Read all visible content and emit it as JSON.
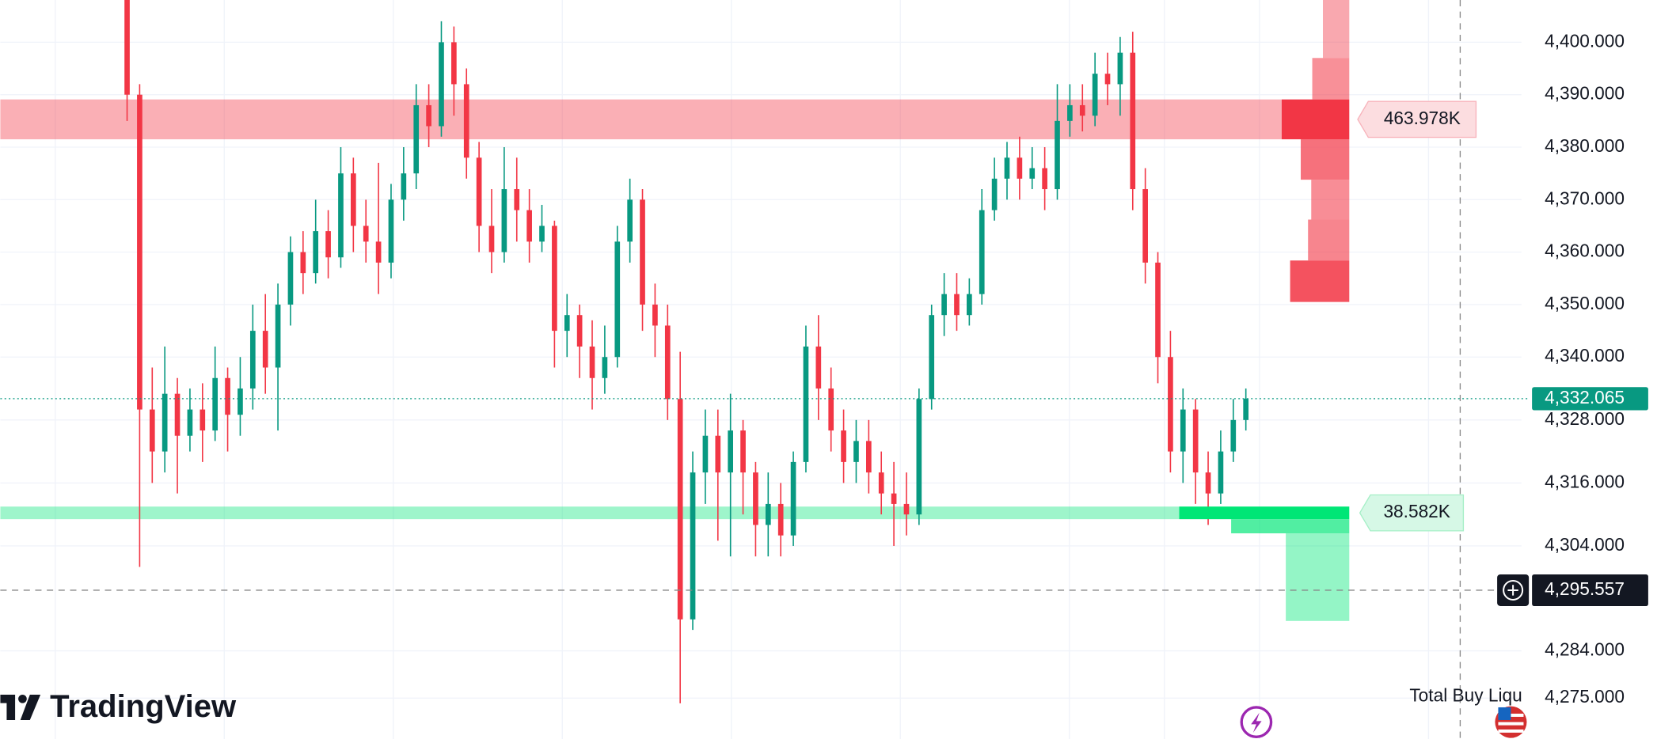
{
  "chart_data": {
    "type": "candlestick",
    "open": [
      4410,
      4390,
      4330,
      4322,
      4333,
      4325,
      4330,
      4326,
      4336,
      4329,
      4334,
      4345,
      4338,
      4350,
      4360,
      4356,
      4364,
      4359,
      4375,
      4365,
      4362,
      4358,
      4370,
      4375,
      4388,
      4384,
      4400,
      4392,
      4378,
      4365,
      4360,
      4372,
      4368,
      4362,
      4365,
      4345,
      4348,
      4342,
      4336,
      4340,
      4362,
      4370,
      4350,
      4346,
      4332,
      4290,
      4318,
      4325,
      4318,
      4326,
      4318,
      4308,
      4312,
      4306,
      4320,
      4342,
      4334,
      4326,
      4320,
      4324,
      4318,
      4314,
      4312,
      4310,
      4332,
      4348,
      4352,
      4348,
      4352,
      4368,
      4374,
      4378,
      4374,
      4376,
      4372,
      4385,
      4388,
      4386,
      4394,
      4392,
      4398,
      4372,
      4358,
      4340,
      4322,
      4330,
      4318,
      4314,
      4322,
      4328
    ],
    "high": [
      4412,
      4392,
      4338,
      4342,
      4336,
      4334,
      4335,
      4342,
      4338,
      4340,
      4350,
      4352,
      4354,
      4363,
      4364,
      4370,
      4368,
      4380,
      4378,
      4370,
      4377,
      4373,
      4380,
      4392,
      4392,
      4404,
      4403,
      4395,
      4381,
      4372,
      4380,
      4378,
      4372,
      4369,
      4366,
      4352,
      4350,
      4347,
      4346,
      4365,
      4374,
      4372,
      4354,
      4350,
      4341,
      4322,
      4330,
      4330,
      4333,
      4328,
      4320,
      4318,
      4316,
      4322,
      4346,
      4348,
      4338,
      4330,
      4328,
      4328,
      4322,
      4320,
      4318,
      4334,
      4350,
      4356,
      4356,
      4355,
      4372,
      4378,
      4381,
      4382,
      4380,
      4380,
      4392,
      4392,
      4392,
      4398,
      4398,
      4401,
      4402,
      4376,
      4360,
      4345,
      4334,
      4332,
      4322,
      4326,
      4332,
      4334
    ],
    "low": [
      4385,
      4300,
      4316,
      4318,
      4314,
      4322,
      4320,
      4324,
      4322,
      4325,
      4330,
      4333,
      4326,
      4346,
      4352,
      4354,
      4355,
      4357,
      4360,
      4358,
      4352,
      4355,
      4366,
      4372,
      4380,
      4382,
      4386,
      4374,
      4360,
      4356,
      4358,
      4362,
      4358,
      4360,
      4338,
      4340,
      4336,
      4330,
      4333,
      4338,
      4358,
      4345,
      4340,
      4328,
      4274,
      4288,
      4312,
      4305,
      4302,
      4310,
      4302,
      4302,
      4302,
      4304,
      4318,
      4328,
      4322,
      4316,
      4316,
      4314,
      4310,
      4304,
      4306,
      4308,
      4330,
      4344,
      4345,
      4346,
      4350,
      4366,
      4370,
      4370,
      4372,
      4368,
      4370,
      4382,
      4383,
      4384,
      4388,
      4386,
      4368,
      4354,
      4335,
      4318,
      4316,
      4312,
      4308,
      4312,
      4320,
      4326
    ],
    "close": [
      4390,
      4330,
      4322,
      4333,
      4325,
      4330,
      4326,
      4336,
      4329,
      4334,
      4345,
      4338,
      4350,
      4360,
      4356,
      4364,
      4359,
      4375,
      4365,
      4362,
      4358,
      4370,
      4375,
      4388,
      4384,
      4400,
      4392,
      4378,
      4365,
      4360,
      4372,
      4368,
      4362,
      4365,
      4345,
      4348,
      4342,
      4336,
      4340,
      4362,
      4370,
      4350,
      4346,
      4332,
      4290,
      4318,
      4325,
      4318,
      4326,
      4318,
      4308,
      4312,
      4306,
      4320,
      4342,
      4334,
      4326,
      4320,
      4324,
      4318,
      4314,
      4312,
      4310,
      4332,
      4348,
      4352,
      4348,
      4352,
      4368,
      4374,
      4378,
      4374,
      4376,
      4372,
      4385,
      4388,
      4386,
      4394,
      4392,
      4398,
      4372,
      4358,
      4340,
      4322,
      4330,
      4318,
      4314,
      4322,
      4328,
      4332.065
    ],
    "up_color": "#089981",
    "down_color": "#f23645",
    "ylim": [
      4267.2,
      4408.05
    ],
    "yticks": [
      {
        "value": 4400,
        "label": "4,400.000"
      },
      {
        "value": 4390,
        "label": "4,390.000"
      },
      {
        "value": 4380,
        "label": "4,380.000"
      },
      {
        "value": 4370,
        "label": "4,370.000"
      },
      {
        "value": 4360,
        "label": "4,360.000"
      },
      {
        "value": 4350,
        "label": "4,350.000"
      },
      {
        "value": 4340,
        "label": "4,340.000"
      },
      {
        "value": 4328,
        "label": "4,328.000"
      },
      {
        "value": 4316,
        "label": "4,316.000"
      },
      {
        "value": 4304,
        "label": "4,304.000"
      },
      {
        "value": 4284,
        "label": "4,284.000"
      },
      {
        "value": 4275,
        "label": "4,275.000"
      }
    ],
    "grid": true,
    "last_price": {
      "value": 4332.065,
      "label": "4,332.065"
    },
    "crosshair_price": {
      "value": 4295.557,
      "label": "4,295.557"
    },
    "sell_liquidity": {
      "color": "#f23645",
      "levels": [
        [
          4397.0,
          4408.05
        ],
        [
          4389.1,
          4397.0
        ],
        [
          4381.5,
          4389.1
        ],
        [
          4373.8,
          4381.5
        ],
        [
          4366.2,
          4373.8
        ],
        [
          4358.4,
          4366.2
        ],
        [
          4350.5,
          4358.4
        ]
      ],
      "values": [
        181,
        254,
        463.978,
        333,
        261,
        283,
        406
      ],
      "value_labels": [
        null,
        null,
        "463.978K",
        null,
        null,
        null,
        null
      ]
    },
    "buy_liquidity": {
      "color": "#00e676",
      "levels": [
        [
          4309.1,
          4311.5
        ],
        [
          4306.4,
          4309.1
        ],
        [
          4289.7,
          4306.4
        ]
      ],
      "values": [
        38.582,
        26.8,
        14.4
      ],
      "value_labels": [
        "38.582K",
        null,
        null
      ]
    },
    "legend_text": "Total Buy Liqu",
    "logo": "TradingView"
  }
}
